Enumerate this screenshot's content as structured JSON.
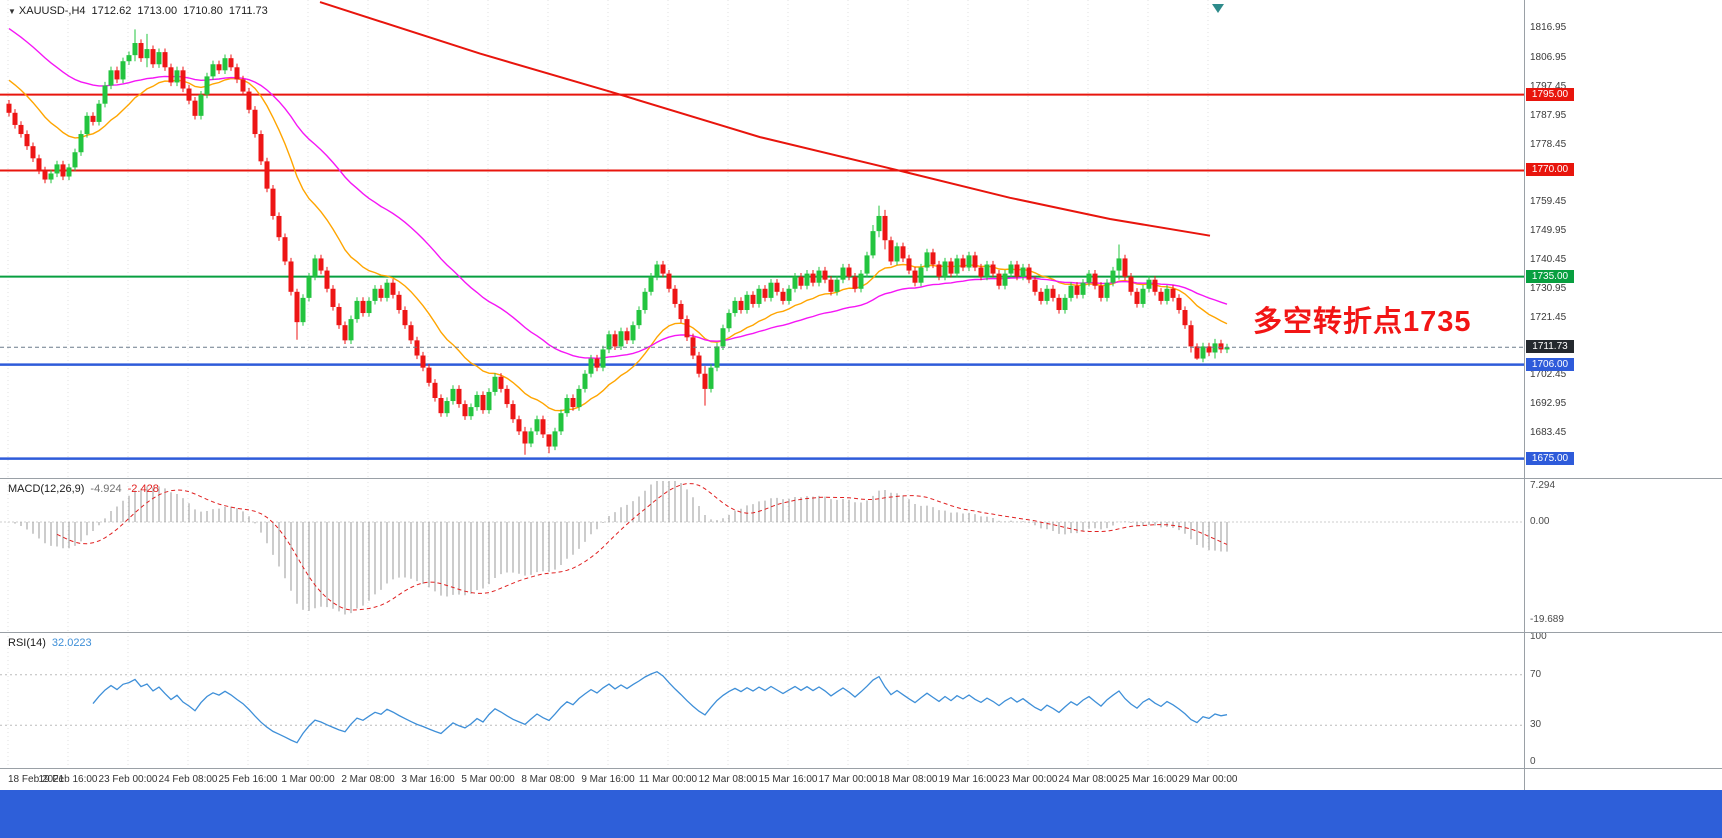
{
  "header": {
    "symbol": "XAUUSD-,H4",
    "open": "1712.62",
    "high": "1713.00",
    "low": "1710.80",
    "close": "1711.73"
  },
  "annotation": {
    "text": "多空转折点1735",
    "color": "#F21515"
  },
  "current_price": {
    "label": "1711.73",
    "value": 1711.73
  },
  "indicators": {
    "macd": {
      "name": "MACD(12,26,9)",
      "value_main": "-4.924",
      "value_signal": "-2.428",
      "fast": 12,
      "slow": 26,
      "signal": 9,
      "axis": [
        {
          "v": 7.294,
          "label": "7.294"
        },
        {
          "v": 0,
          "label": "0.00"
        },
        {
          "v": -19.689,
          "label": "-19.689"
        }
      ]
    },
    "rsi": {
      "name": "RSI(14)",
      "value": "32.0223",
      "period": 14,
      "levels": [
        70,
        30
      ],
      "axis": [
        {
          "v": 100,
          "label": "100"
        },
        {
          "v": 70,
          "label": "70"
        },
        {
          "v": 30,
          "label": "30"
        },
        {
          "v": 0,
          "label": "0"
        }
      ]
    }
  },
  "colors": {
    "up": "#23C43F",
    "down": "#ED1515",
    "ma_fast": "#FFA500",
    "ma_slow": "#F516F5",
    "trend": "#E8150D",
    "current_line": "#6b7c8c",
    "current_label_bg": "#24292e",
    "macd_hist": "#9a9a9a",
    "macd_signal": "#E02020",
    "rsi_line": "#3E8FD8",
    "grid": "#e0e0e0",
    "bottom_bar": "#2E5FD9",
    "annotation": "#F21515"
  },
  "chart_data": {
    "type": "candlestick",
    "symbol": "XAUUSD",
    "timeframe": "H4",
    "ylim": [
      1671,
      1820
    ],
    "price_ticks": [
      "1816.95",
      "1806.95",
      "1797.45",
      "1787.95",
      "1778.45",
      "1768.95",
      "1759.45",
      "1749.95",
      "1740.45",
      "1730.95",
      "1721.45",
      "1711.95",
      "1702.45",
      "1692.95",
      "1683.45"
    ],
    "time_labels": [
      "18 Feb 2021",
      "19 Feb 16:00",
      "23 Feb 00:00",
      "24 Feb 08:00",
      "25 Feb 16:00",
      "1 Mar 00:00",
      "2 Mar 08:00",
      "3 Mar 16:00",
      "5 Mar 00:00",
      "8 Mar 08:00",
      "9 Mar 16:00",
      "11 Mar 00:00",
      "12 Mar 08:00",
      "15 Mar 16:00",
      "17 Mar 00:00",
      "18 Mar 08:00",
      "19 Mar 16:00",
      "23 Mar 00:00",
      "24 Mar 08:00",
      "25 Mar 16:00",
      "29 Mar 00:00"
    ],
    "levels": [
      {
        "label": "1795.00",
        "price": 1795.0,
        "color": "#E8150D",
        "width": 2
      },
      {
        "label": "1770.00",
        "price": 1770.0,
        "color": "#E8150D",
        "width": 2
      },
      {
        "label": "1735.00",
        "price": 1735.0,
        "color": "#089F40",
        "width": 2
      },
      {
        "label": "1706.00",
        "price": 1706.0,
        "color": "#2E5BDA",
        "width": 2.5
      },
      {
        "label": "1675.00",
        "price": 1675.0,
        "color": "#2E5BDA",
        "width": 2.5
      }
    ],
    "trend_line": {
      "color": "#E8150D",
      "points_x_price": [
        [
          320,
          1825.5
        ],
        [
          480,
          1808.5
        ],
        [
          615,
          1795.5
        ],
        [
          760,
          1781
        ],
        [
          905,
          1769.5
        ],
        [
          1010,
          1761
        ],
        [
          1110,
          1754
        ],
        [
          1210,
          1748.5
        ]
      ]
    },
    "moving_averages": [
      {
        "name": "ma-fast",
        "color": "#FFA500",
        "period": 18,
        "seed": 1801
      },
      {
        "name": "ma-slow",
        "color": "#F516F5",
        "period": 45,
        "seed": 1818
      }
    ],
    "first_open": 1792,
    "default_wick": 1.2,
    "wick_overrides": {
      "21": [
        1816.5,
        1806
      ],
      "23": [
        1815,
        1804
      ],
      "48": [
        1731,
        1714.2
      ],
      "86": [
        1685.5,
        1676.3
      ],
      "90": [
        1683,
        1676.8
      ],
      "116": [
        1705.5,
        1692.5
      ],
      "144": [
        1752,
        1741
      ],
      "145": [
        1758.4,
        1748
      ],
      "146": [
        1757,
        1744
      ],
      "185": [
        1745.6,
        1734
      ],
      "197": [
        1720.5,
        1710
      ],
      "198": [
        1713,
        1707.6
      ],
      "201": [
        1714.5,
        1708
      ]
    },
    "closes": [
      1789,
      1785,
      1782,
      1778,
      1774,
      1770,
      1767,
      1769,
      1772,
      1768,
      1771,
      1776,
      1782,
      1788,
      1786,
      1792,
      1798,
      1803,
      1800,
      1806,
      1808,
      1812,
      1807,
      1810,
      1805,
      1809,
      1804,
      1799,
      1803,
      1797,
      1793,
      1788,
      1795,
      1801,
      1805,
      1803,
      1807,
      1804,
      1800,
      1796,
      1790,
      1782,
      1773,
      1764,
      1755,
      1748,
      1740,
      1730,
      1720,
      1728,
      1735,
      1741,
      1737,
      1731,
      1725,
      1719,
      1714,
      1721,
      1727,
      1723,
      1727,
      1731,
      1728,
      1733,
      1729,
      1724,
      1719,
      1714,
      1709,
      1705,
      1700,
      1695,
      1690,
      1694,
      1698,
      1693,
      1689,
      1692,
      1696,
      1691,
      1697,
      1702,
      1698,
      1693,
      1688,
      1684,
      1680,
      1684,
      1688,
      1683,
      1679,
      1684,
      1690,
      1695,
      1692,
      1698,
      1703,
      1708,
      1705,
      1711,
      1716,
      1712,
      1717,
      1714,
      1719,
      1724,
      1730,
      1735,
      1739,
      1736,
      1731,
      1726,
      1721,
      1715,
      1709,
      1703,
      1698,
      1705,
      1712,
      1718,
      1723,
      1727,
      1724,
      1729,
      1726,
      1731,
      1728,
      1733,
      1730,
      1727,
      1731,
      1735,
      1732,
      1736,
      1733,
      1737,
      1734,
      1730,
      1734,
      1738,
      1735,
      1731,
      1736,
      1742,
      1750,
      1755,
      1747,
      1740,
      1745,
      1741,
      1737,
      1733,
      1738,
      1743,
      1739,
      1735,
      1740,
      1736,
      1741,
      1738,
      1742,
      1738,
      1735,
      1739,
      1736,
      1732,
      1736,
      1739,
      1735,
      1738,
      1734,
      1730,
      1727,
      1731,
      1728,
      1724,
      1728,
      1732,
      1729,
      1733,
      1736,
      1732,
      1728,
      1733,
      1737,
      1741,
      1735,
      1730,
      1726,
      1731,
      1734,
      1730,
      1727,
      1731,
      1728,
      1724,
      1719,
      1712,
      1708,
      1712,
      1710,
      1713,
      1711,
      1711.7
    ]
  }
}
